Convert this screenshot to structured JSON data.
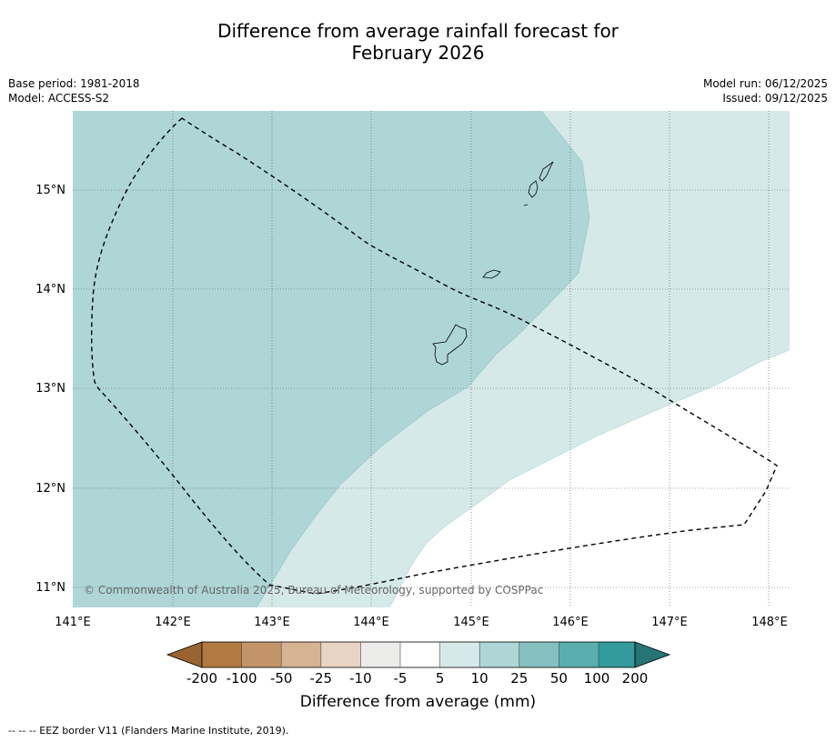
{
  "header": {
    "title_line1": "Difference from average rainfall forecast for",
    "title_line2": "February 2026",
    "base_period": "Base period: 1981-2018",
    "model": "Model: ACCESS-S2",
    "model_run": "Model run: 06/12/2025",
    "issued": "Issued: 09/12/2025"
  },
  "map": {
    "lon_ticks": [
      "141°E",
      "142°E",
      "143°E",
      "144°E",
      "145°E",
      "146°E",
      "147°E",
      "148°E"
    ],
    "lat_ticks": [
      "15°N",
      "14°N",
      "13°N",
      "12°N",
      "11°N"
    ],
    "credit": "© Commonwealth of Australia 2025, Bureau of Meteorology, supported by COSPPac",
    "regions": [
      {
        "category": "25 to 50",
        "color": "#aed6d6"
      },
      {
        "category": "10 to 25",
        "color": "#d5e9e8"
      },
      {
        "category": "5 to 10",
        "color": "#ffffff"
      }
    ]
  },
  "colorbar": {
    "title": "Difference from average (mm)",
    "ticks": [
      "-200",
      "-100",
      "-50",
      "-25",
      "-10",
      "-5",
      "5",
      "10",
      "25",
      "50",
      "100",
      "200"
    ],
    "colors": [
      "#9a6431",
      "#b07a40",
      "#c29468",
      "#d6b393",
      "#e8d4c2",
      "#ececea",
      "#ffffff",
      "#d5e9e8",
      "#aed6d6",
      "#85c0c1",
      "#5aaeae",
      "#339b9b",
      "#267474"
    ]
  },
  "footer": {
    "note": "-- -- -- EEZ border V11 (Flanders Marine Institute, 2019)."
  }
}
